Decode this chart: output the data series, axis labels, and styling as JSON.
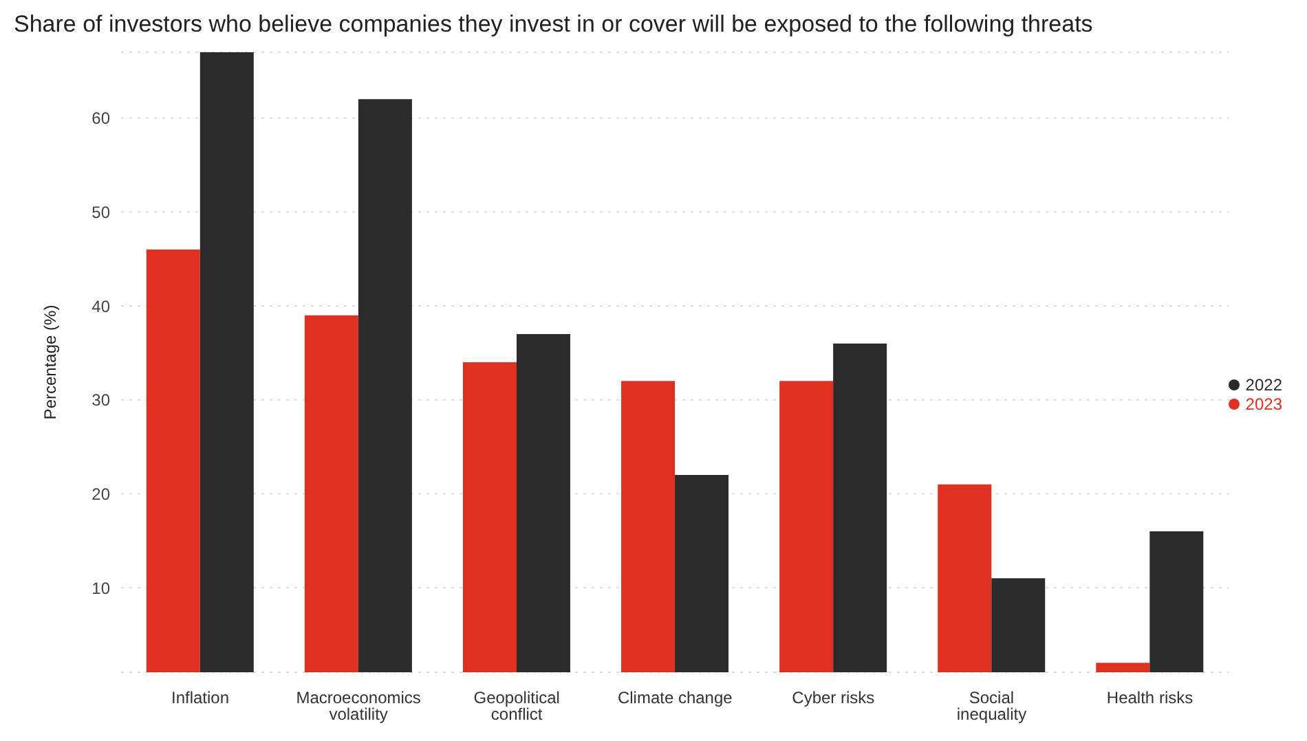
{
  "chart_data": {
    "type": "bar",
    "title": "Share of investors who believe companies they invest in or cover will be exposed to the following threats",
    "ylabel": "Percentage (%)",
    "categories": [
      "Inflation",
      "Macroeconomics volatility",
      "Geopolitical conflict",
      "Climate change",
      "Cyber risks",
      "Social inequality",
      "Health risks"
    ],
    "series": [
      {
        "name": "2023",
        "color": "#e03020",
        "values": [
          46,
          39,
          34,
          32,
          32,
          21,
          2
        ]
      },
      {
        "name": "2022",
        "color": "#2b2b2b",
        "values": [
          67,
          62,
          37,
          22,
          36,
          11,
          16
        ]
      }
    ],
    "ylim": [
      1,
      67
    ],
    "yticks": [
      10,
      20,
      30,
      40,
      50,
      60
    ],
    "grid": "y",
    "legend": "right"
  }
}
